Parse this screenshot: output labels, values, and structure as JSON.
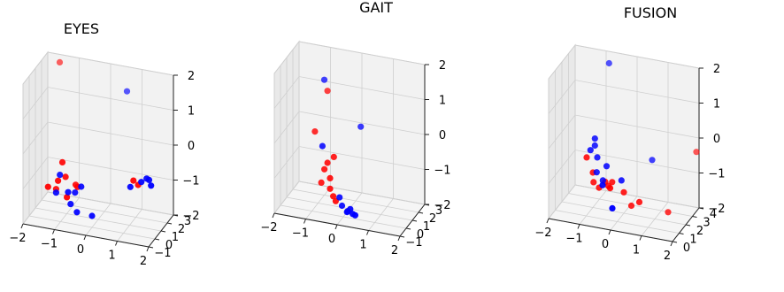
{
  "figure": {
    "colors": {
      "red": "#ff0000",
      "blue": "#0000ff",
      "pane": "#f2f2f2"
    }
  },
  "chart_data": [
    {
      "type": "scatter",
      "title": "EYES",
      "x_ticks": [
        "−2",
        "−1",
        "0",
        "1",
        "2"
      ],
      "y_ticks": [
        "−1",
        "0",
        "1",
        "2",
        "3"
      ],
      "z_ticks": [
        "−2",
        "−1",
        "0",
        "1",
        "2"
      ],
      "xlim": [
        -2,
        2
      ],
      "ylim": [
        -1,
        3
      ],
      "zlim": [
        -2,
        2
      ],
      "series": [
        {
          "color": "#ff0000",
          "points": [
            [
              -1.6,
              2.9,
              1.8
            ],
            [
              -1.5,
              0.5,
              -1.2
            ],
            [
              -1.3,
              0.8,
              -1.3
            ],
            [
              -1.1,
              0.8,
              -0.5
            ],
            [
              -1.0,
              0.8,
              -0.9
            ],
            [
              -1.2,
              0.6,
              -1.0
            ],
            [
              -0.7,
              0.9,
              -1.1
            ],
            [
              -0.9,
              0.5,
              -1.4
            ],
            [
              -0.6,
              0.7,
              -1.1
            ],
            [
              1.2,
              0.6,
              -0.6
            ],
            [
              1.35,
              0.6,
              -0.7
            ]
          ]
        },
        {
          "color": "#0000ff",
          "points": [
            [
              0.6,
              2.6,
              1.4
            ],
            [
              -1.2,
              0.9,
              -0.9
            ],
            [
              -1.3,
              0.8,
              -1.4
            ],
            [
              -0.9,
              0.7,
              -1.3
            ],
            [
              -0.7,
              0.8,
              -1.3
            ],
            [
              -0.8,
              0.6,
              -1.6
            ],
            [
              -0.5,
              0.8,
              -1.1
            ],
            [
              -0.6,
              0.6,
              -1.8
            ],
            [
              -0.1,
              0.5,
              -1.8
            ],
            [
              1.1,
              0.6,
              -0.8
            ],
            [
              1.45,
              0.6,
              -0.6
            ],
            [
              1.6,
              0.7,
              -0.5
            ],
            [
              1.8,
              0.4,
              -0.6
            ],
            [
              1.7,
              0.6,
              -0.5
            ]
          ]
        }
      ]
    },
    {
      "type": "scatter",
      "title": "GAIT",
      "x_ticks": [
        "−2",
        "−1",
        "0",
        "1",
        "2"
      ],
      "y_ticks": [
        "−1",
        "0",
        "1",
        "2",
        "3"
      ],
      "z_ticks": [
        "−2",
        "−1",
        "0",
        "1",
        "2"
      ],
      "xlim": [
        -2,
        2
      ],
      "ylim": [
        -1,
        3
      ],
      "zlim": [
        -2,
        2
      ],
      "series": [
        {
          "color": "#ff0000",
          "points": [
            [
              -0.9,
              2.0,
              1.0
            ],
            [
              -1.2,
              1.5,
              -0.1
            ],
            [
              -0.9,
              1.0,
              -1.4
            ],
            [
              -0.8,
              1.0,
              -1.0
            ],
            [
              -0.7,
              1.0,
              -0.8
            ],
            [
              -0.6,
              0.9,
              -1.2
            ],
            [
              -0.5,
              1.0,
              -0.6
            ],
            [
              -0.6,
              0.9,
              -1.5
            ],
            [
              -0.5,
              0.9,
              -1.7
            ],
            [
              -0.4,
              0.8,
              -1.8
            ]
          ]
        },
        {
          "color": "#0000ff",
          "points": [
            [
              -1.0,
              2.0,
              1.3
            ],
            [
              0.2,
              1.8,
              0.2
            ],
            [
              -0.9,
              1.2,
              -0.4
            ],
            [
              -0.3,
              0.9,
              -1.7
            ],
            [
              -0.2,
              0.8,
              -1.9
            ],
            [
              0.0,
              0.7,
              -2.0
            ],
            [
              0.1,
              0.6,
              -1.9
            ],
            [
              0.0,
              0.6,
              -2.0
            ],
            [
              0.2,
              0.5,
              -2.0
            ],
            [
              0.3,
              0.4,
              -2.0
            ]
          ]
        }
      ]
    },
    {
      "type": "scatter",
      "title": "FUSION",
      "x_ticks": [
        "−2",
        "−1",
        "0",
        "1",
        "2"
      ],
      "y_ticks": [
        "0",
        "1",
        "2",
        "3",
        "4"
      ],
      "z_ticks": [
        "−2",
        "−1",
        "0",
        "1",
        "2"
      ],
      "xlim": [
        -2,
        2
      ],
      "ylim": [
        0,
        4
      ],
      "zlim": [
        -2,
        2
      ],
      "series": [
        {
          "color": "#ff0000",
          "points": [
            [
              -1.2,
              2.0,
              -0.6
            ],
            [
              -1.0,
              2.0,
              -1.0
            ],
            [
              -1.0,
              2.1,
              -1.3
            ],
            [
              -0.8,
              2.0,
              -1.4
            ],
            [
              -0.6,
              2.0,
              -1.2
            ],
            [
              -0.4,
              2.1,
              -1.2
            ],
            [
              -0.5,
              2.0,
              -1.3
            ],
            [
              0.0,
              2.0,
              -1.4
            ],
            [
              0.5,
              2.0,
              -1.6
            ],
            [
              1.3,
              2.6,
              -1.9
            ],
            [
              2.0,
              3.6,
              -0.3
            ],
            [
              -0.4,
              1.8,
              -1.3
            ],
            [
              0.2,
              2.2,
              -1.8
            ]
          ]
        },
        {
          "color": "#0000ff",
          "points": [
            [
              -0.8,
              3.5,
              1.8
            ],
            [
              -1.0,
              2.3,
              -0.1
            ],
            [
              -1.0,
              2.3,
              -0.3
            ],
            [
              -1.1,
              2.1,
              -0.4
            ],
            [
              -0.9,
              2.2,
              -0.6
            ],
            [
              -0.9,
              2.1,
              -1.0
            ],
            [
              -0.7,
              2.1,
              -1.2
            ],
            [
              -0.6,
              2.2,
              -0.8
            ],
            [
              0.7,
              3.0,
              -0.6
            ],
            [
              -0.1,
              2.1,
              -1.1
            ],
            [
              -0.6,
              1.6,
              -1.2
            ],
            [
              -0.2,
              1.2,
              -1.7
            ]
          ]
        }
      ]
    }
  ]
}
